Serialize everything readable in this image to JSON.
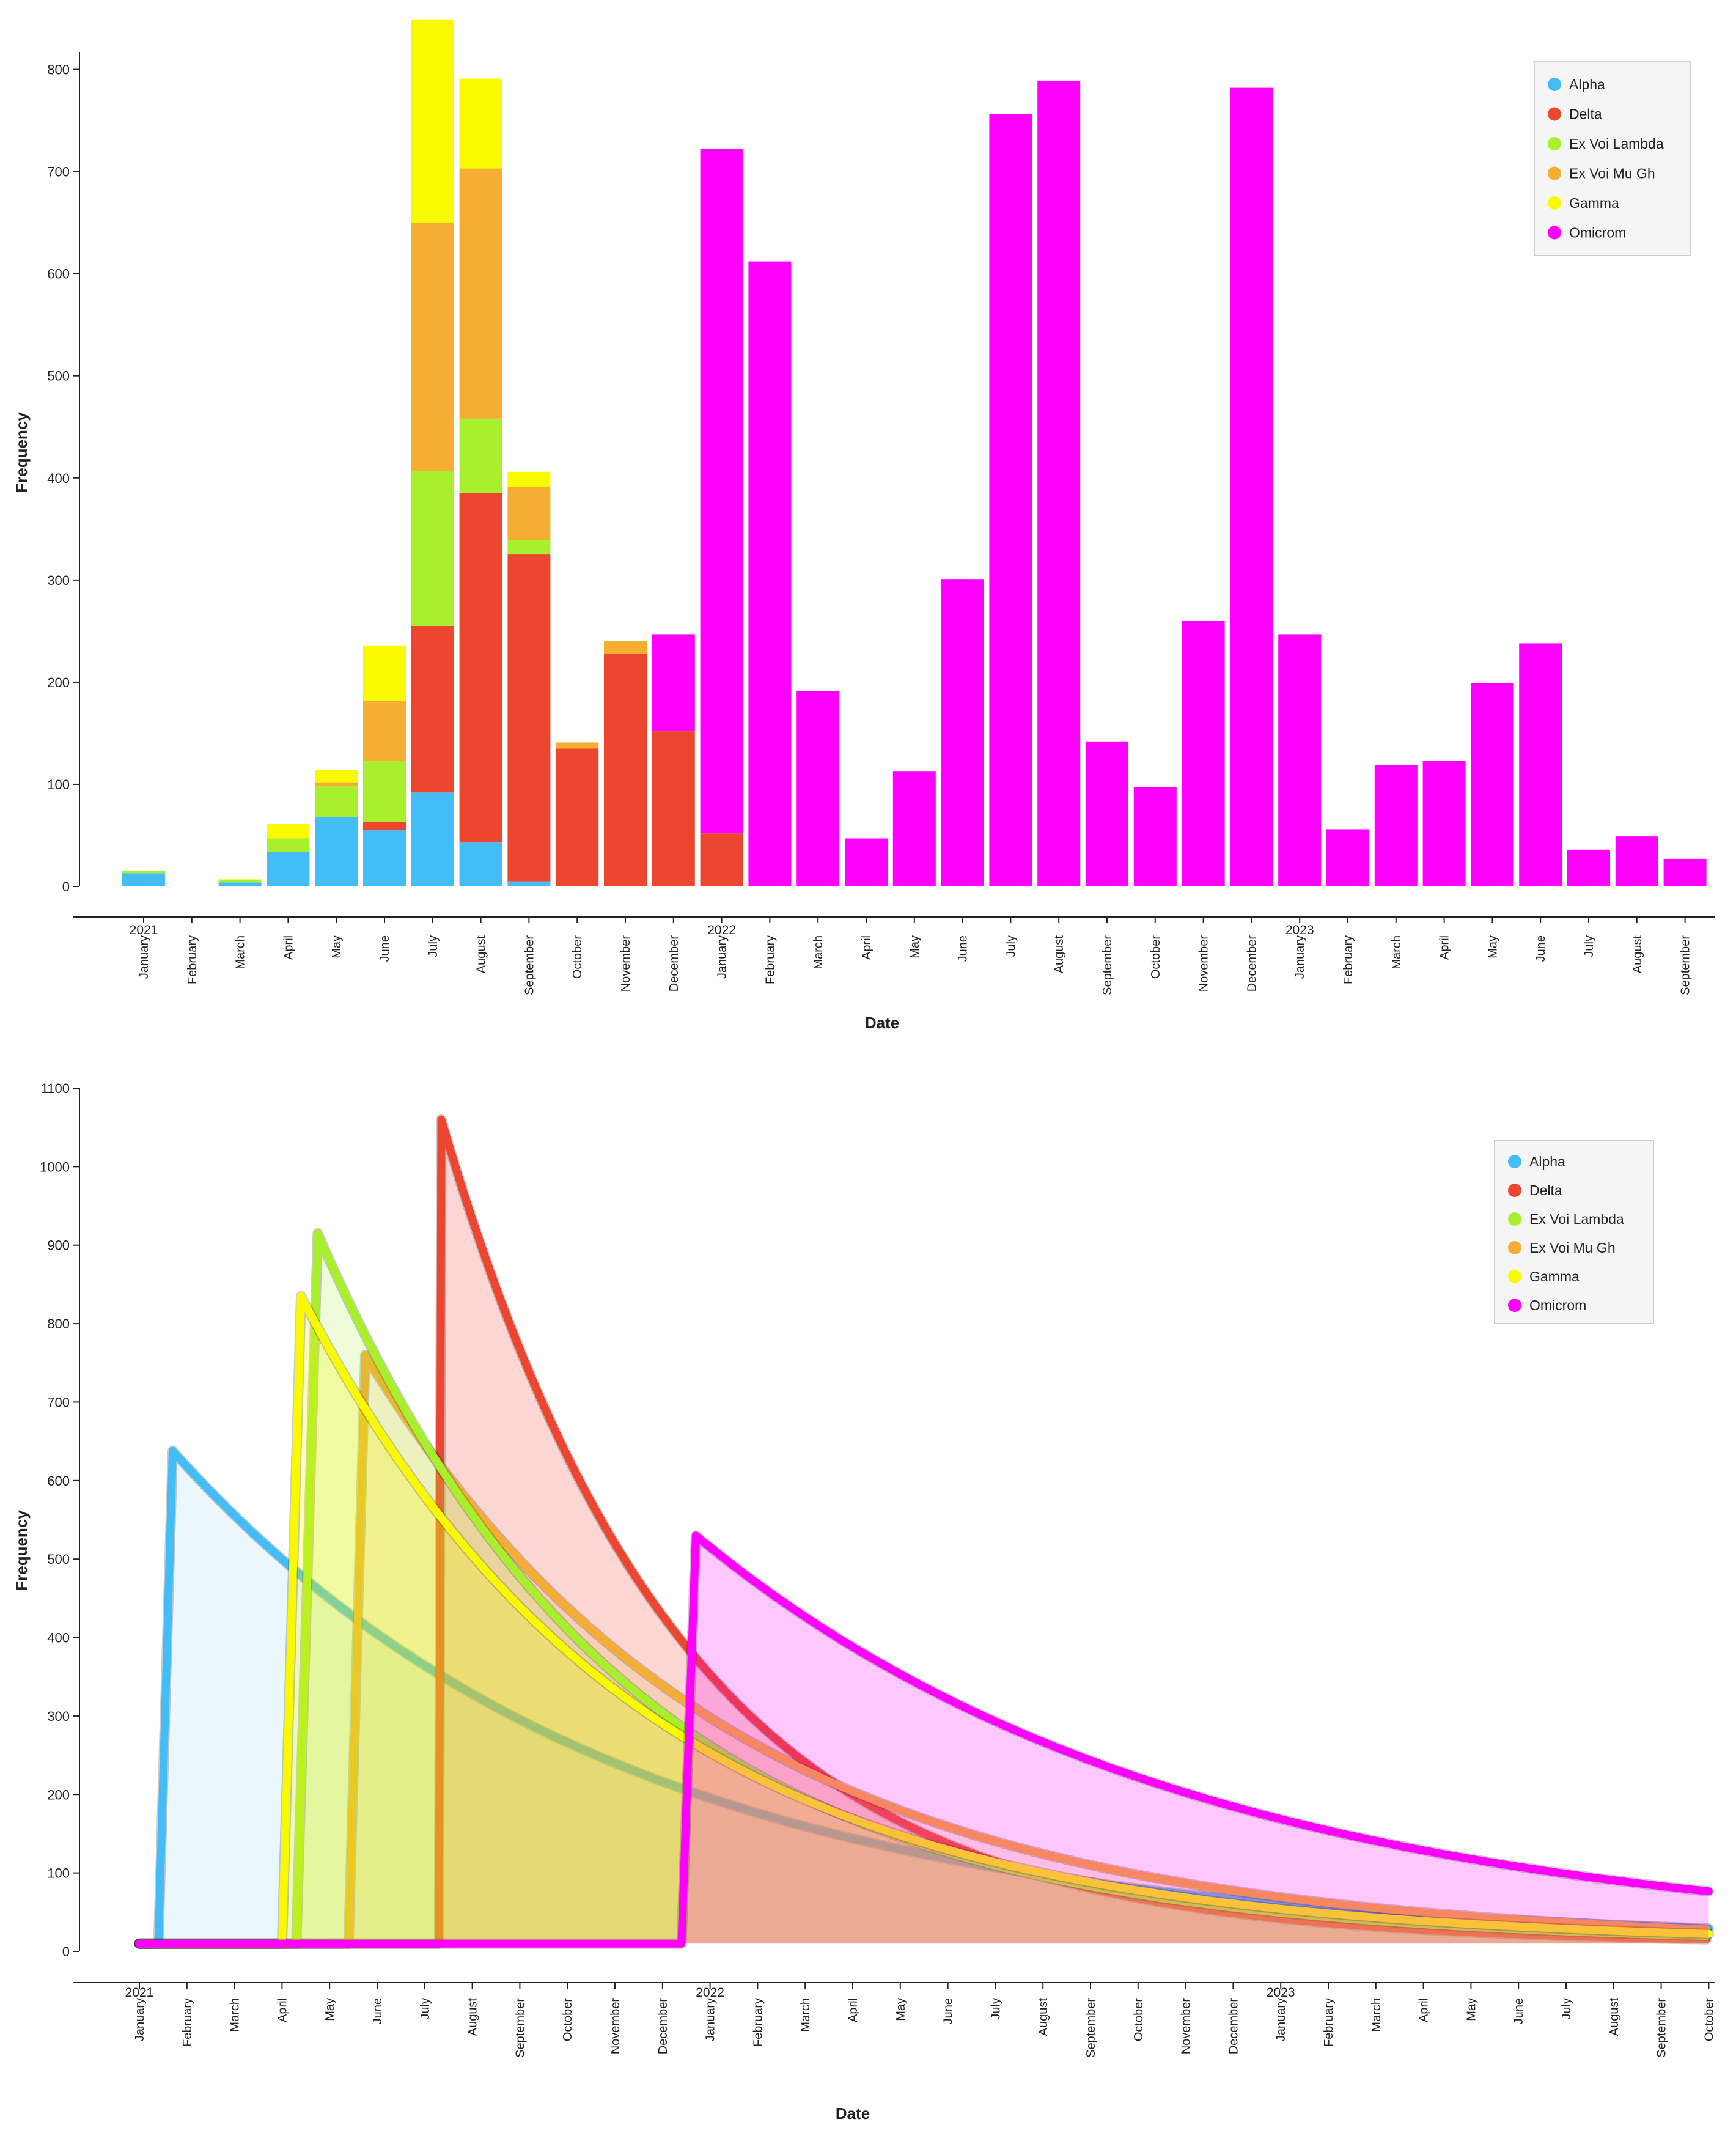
{
  "colors": {
    "Alpha": "#43bdf5",
    "Delta": "#ec4530",
    "Ex Voi Lambda": "#a8ef2c",
    "Ex Voi Mu Gh": "#f5ad34",
    "Gamma": "#f9f900",
    "Omicrom": "#ff00ff"
  },
  "chart_data": [
    {
      "type": "bar",
      "stacked": true,
      "title": "",
      "xlabel": "Date",
      "ylabel": "Frequency",
      "ylim": [
        0,
        850
      ],
      "yticks": [
        0,
        100,
        200,
        300,
        400,
        500,
        600,
        700,
        800
      ],
      "year_labels": [
        {
          "index": 0,
          "label": "2021"
        },
        {
          "index": 12,
          "label": "2022"
        },
        {
          "index": 24,
          "label": "2023"
        }
      ],
      "categories": [
        "January",
        "February",
        "March",
        "April",
        "May",
        "June",
        "July",
        "August",
        "September",
        "October",
        "November",
        "December",
        "January",
        "February",
        "March",
        "April",
        "May",
        "June",
        "July",
        "August",
        "September",
        "October",
        "November",
        "December",
        "January",
        "February",
        "March",
        "April",
        "May",
        "June",
        "July",
        "August",
        "September"
      ],
      "series": [
        {
          "name": "Alpha",
          "values": [
            13,
            0,
            4,
            34,
            68,
            55,
            92,
            43,
            5,
            0,
            0,
            0,
            0,
            0,
            0,
            0,
            0,
            0,
            0,
            0,
            0,
            0,
            0,
            0,
            0,
            0,
            0,
            0,
            0,
            0,
            0,
            0,
            0
          ]
        },
        {
          "name": "Delta",
          "values": [
            0,
            0,
            0,
            0,
            0,
            8,
            163,
            342,
            320,
            135,
            228,
            152,
            52,
            0,
            0,
            0,
            0,
            0,
            0,
            0,
            0,
            0,
            0,
            0,
            0,
            0,
            0,
            0,
            0,
            0,
            0,
            0,
            0
          ]
        },
        {
          "name": "Ex Voi Lambda",
          "values": [
            2,
            0,
            2,
            13,
            30,
            60,
            152,
            73,
            14,
            0,
            0,
            0,
            0,
            0,
            0,
            0,
            0,
            0,
            0,
            0,
            0,
            0,
            0,
            0,
            0,
            0,
            0,
            0,
            0,
            0,
            0,
            0,
            0
          ]
        },
        {
          "name": "Ex Voi Mu Gh",
          "values": [
            0,
            0,
            0,
            0,
            4,
            59,
            243,
            245,
            52,
            6,
            12,
            0,
            0,
            0,
            0,
            0,
            0,
            0,
            0,
            0,
            0,
            0,
            0,
            0,
            0,
            0,
            0,
            0,
            0,
            0,
            0,
            0,
            0
          ]
        },
        {
          "name": "Gamma",
          "values": [
            0,
            0,
            1,
            14,
            12,
            54,
            199,
            88,
            15,
            0,
            0,
            0,
            0,
            0,
            0,
            0,
            0,
            0,
            0,
            0,
            0,
            0,
            0,
            0,
            0,
            0,
            0,
            0,
            0,
            0,
            0,
            0,
            0
          ]
        },
        {
          "name": "Omicrom",
          "values": [
            0,
            0,
            0,
            0,
            0,
            0,
            0,
            0,
            0,
            0,
            0,
            95,
            670,
            612,
            191,
            47,
            113,
            301,
            756,
            789,
            142,
            97,
            260,
            782,
            247,
            56,
            119,
            123,
            199,
            238,
            36,
            49,
            27
          ]
        }
      ],
      "legend": [
        "Alpha",
        "Delta",
        "Ex Voi Lambda",
        "Ex Voi Mu Gh",
        "Gamma",
        "Omicrom"
      ],
      "legend_position": "top-right"
    },
    {
      "type": "area",
      "title": "",
      "xlabel": "Date",
      "ylabel": "Frequency",
      "ylim": [
        0,
        1100
      ],
      "yticks": [
        0,
        100,
        200,
        300,
        400,
        500,
        600,
        700,
        800,
        900,
        1000,
        1100
      ],
      "xlim_months": [
        0,
        33
      ],
      "year_labels": [
        {
          "index": 0,
          "label": "2021"
        },
        {
          "index": 12,
          "label": "2022"
        },
        {
          "index": 24,
          "label": "2023"
        }
      ],
      "categories": [
        "January",
        "February",
        "March",
        "April",
        "May",
        "June",
        "July",
        "August",
        "September",
        "October",
        "November",
        "December",
        "January",
        "February",
        "March",
        "April",
        "May",
        "June",
        "July",
        "August",
        "September",
        "October",
        "November",
        "December",
        "January",
        "February",
        "March",
        "April",
        "May",
        "June",
        "July",
        "August",
        "September",
        "October"
      ],
      "series": [
        {
          "name": "Alpha",
          "start": 0.4,
          "peak_month": 0.7,
          "peak": 638,
          "decay": 0.108,
          "baseline": 10
        },
        {
          "name": "Delta",
          "start": 6.3,
          "peak_month": 6.35,
          "peak": 1060,
          "decay": 0.198,
          "baseline": 10
        },
        {
          "name": "Ex Voi Lambda",
          "start": 3.3,
          "peak_month": 3.75,
          "peak": 915,
          "decay": 0.155,
          "baseline": 10
        },
        {
          "name": "Ex Voi Mu Gh",
          "start": 4.4,
          "peak_month": 4.75,
          "peak": 760,
          "decay": 0.132,
          "baseline": 10
        },
        {
          "name": "Gamma",
          "start": 3.0,
          "peak_month": 3.4,
          "peak": 835,
          "decay": 0.142,
          "baseline": 10
        },
        {
          "name": "Omicrom",
          "start": 11.4,
          "peak_month": 11.7,
          "peak": 530,
          "decay": 0.0965,
          "baseline": 10
        }
      ],
      "legend": [
        "Alpha",
        "Delta",
        "Ex Voi Lambda",
        "Ex Voi Mu Gh",
        "Gamma",
        "Omicrom"
      ],
      "legend_position": "top-right"
    }
  ]
}
